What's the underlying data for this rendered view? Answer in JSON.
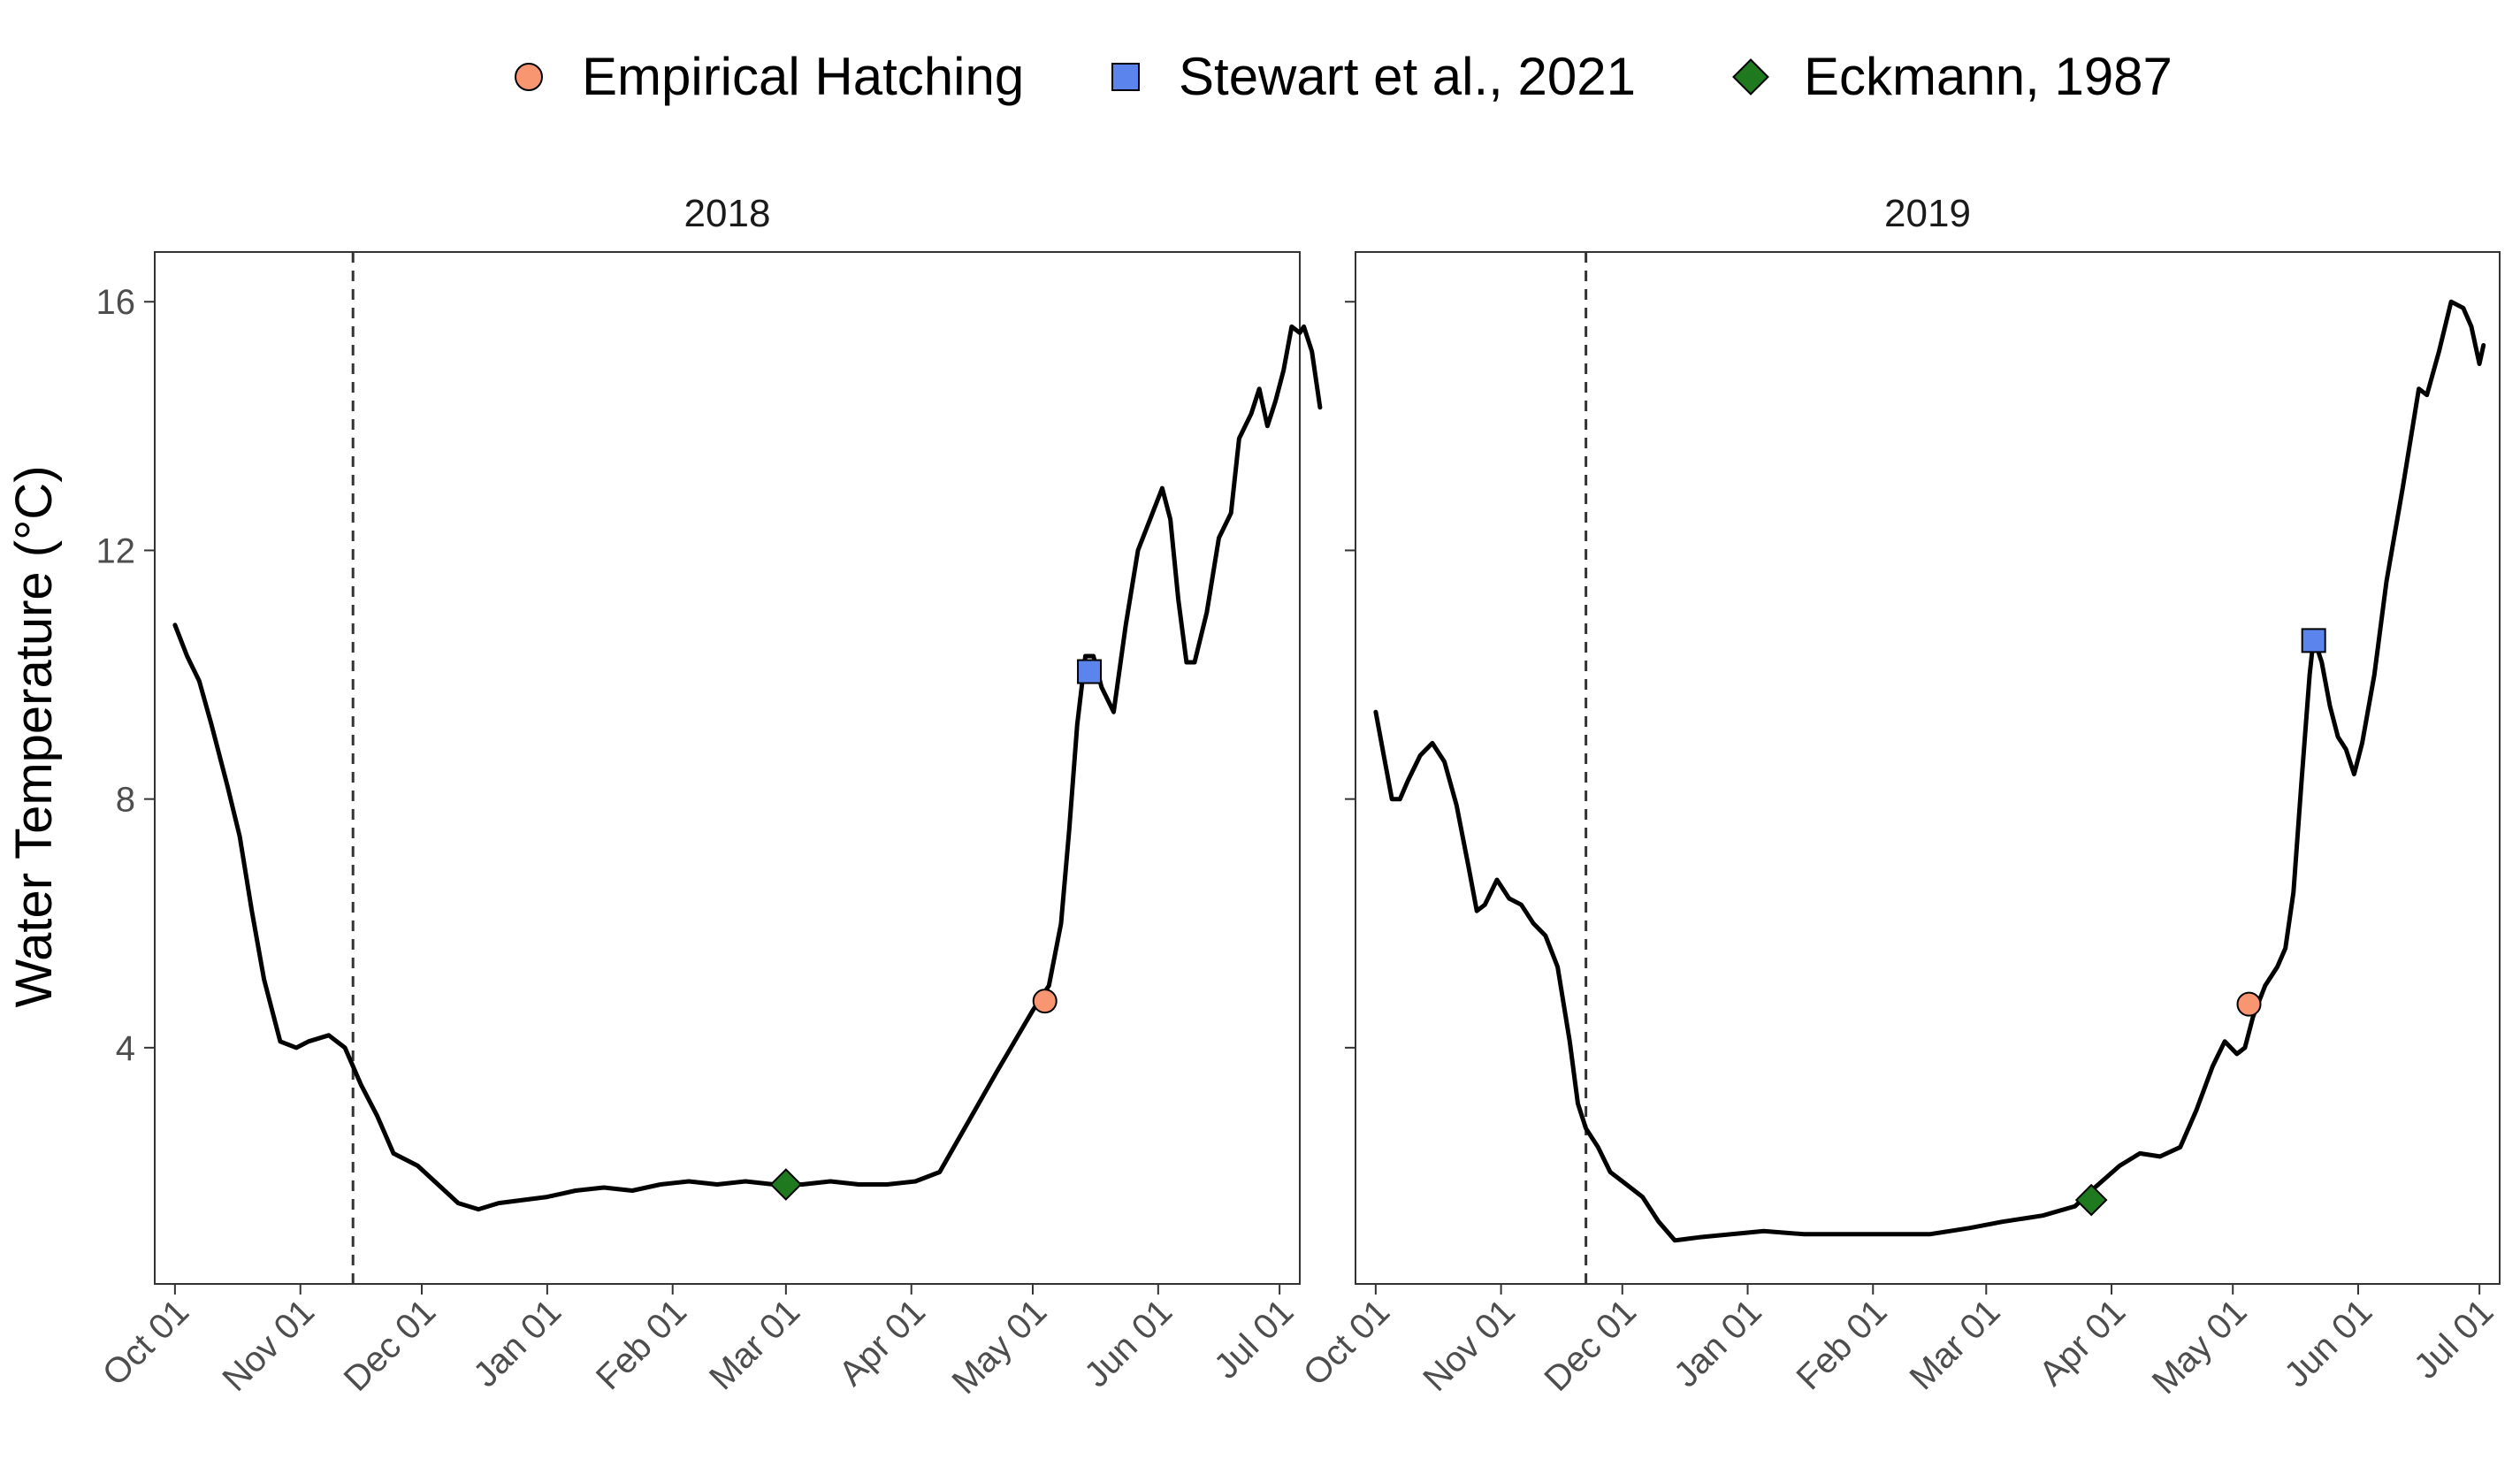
{
  "chart_data": {
    "type": "line",
    "ylabel": "Water Temperature (°C)",
    "xlabel": "",
    "ylim": [
      0.2,
      16.8
    ],
    "yticks": [
      4,
      8,
      12,
      16
    ],
    "x_tick_labels": [
      "Oct 01",
      "Nov 01",
      "Dec 01",
      "Jan 01",
      "Feb 01",
      "Mar 01",
      "Apr 01",
      "May 01",
      "Jun 01",
      "Jul 01"
    ],
    "grid": false,
    "legend": {
      "position": "top",
      "entries": [
        {
          "label": "Empirical Hatching",
          "shape": "circle",
          "color": "#F99672"
        },
        {
          "label": "Stewart et al., 2021",
          "shape": "square",
          "color": "#5B85EC"
        },
        {
          "label": "Eckmann, 1987",
          "shape": "diamond",
          "color": "#1F7A1F"
        }
      ]
    },
    "panels": [
      {
        "title": "2018",
        "vline_date": "2017-11-14",
        "series": [
          [
            "2017-10-01",
            10.8
          ],
          [
            "2017-10-04",
            10.3
          ],
          [
            "2017-10-07",
            9.9
          ],
          [
            "2017-10-10",
            9.2
          ],
          [
            "2017-10-14",
            8.2
          ],
          [
            "2017-10-17",
            7.4
          ],
          [
            "2017-10-20",
            6.2
          ],
          [
            "2017-10-23",
            5.1
          ],
          [
            "2017-10-27",
            4.1
          ],
          [
            "2017-10-31",
            4.0
          ],
          [
            "2017-11-03",
            4.1
          ],
          [
            "2017-11-08",
            4.2
          ],
          [
            "2017-11-12",
            4.0
          ],
          [
            "2017-11-16",
            3.4
          ],
          [
            "2017-11-20",
            2.9
          ],
          [
            "2017-11-24",
            2.3
          ],
          [
            "2017-11-30",
            2.1
          ],
          [
            "2017-12-05",
            1.8
          ],
          [
            "2017-12-10",
            1.5
          ],
          [
            "2017-12-15",
            1.4
          ],
          [
            "2017-12-20",
            1.5
          ],
          [
            "2017-12-26",
            1.55
          ],
          [
            "2018-01-01",
            1.6
          ],
          [
            "2018-01-08",
            1.7
          ],
          [
            "2018-01-15",
            1.75
          ],
          [
            "2018-01-22",
            1.7
          ],
          [
            "2018-01-29",
            1.8
          ],
          [
            "2018-02-05",
            1.85
          ],
          [
            "2018-02-12",
            1.8
          ],
          [
            "2018-02-19",
            1.85
          ],
          [
            "2018-02-26",
            1.8
          ],
          [
            "2018-03-05",
            1.8
          ],
          [
            "2018-03-12",
            1.85
          ],
          [
            "2018-03-19",
            1.8
          ],
          [
            "2018-03-26",
            1.8
          ],
          [
            "2018-04-02",
            1.85
          ],
          [
            "2018-04-08",
            2.0
          ],
          [
            "2018-04-15",
            2.8
          ],
          [
            "2018-04-22",
            3.6
          ],
          [
            "2018-05-01",
            4.6
          ],
          [
            "2018-05-05",
            5.0
          ],
          [
            "2018-05-08",
            6.0
          ],
          [
            "2018-05-10",
            7.5
          ],
          [
            "2018-05-12",
            9.2
          ],
          [
            "2018-05-14",
            10.3
          ],
          [
            "2018-05-16",
            10.3
          ],
          [
            "2018-05-18",
            9.8
          ],
          [
            "2018-05-21",
            9.4
          ],
          [
            "2018-05-24",
            10.8
          ],
          [
            "2018-05-27",
            12.0
          ],
          [
            "2018-05-30",
            12.5
          ],
          [
            "2018-06-02",
            13.0
          ],
          [
            "2018-06-04",
            12.5
          ],
          [
            "2018-06-06",
            11.2
          ],
          [
            "2018-06-08",
            10.2
          ],
          [
            "2018-06-10",
            10.2
          ],
          [
            "2018-06-13",
            11.0
          ],
          [
            "2018-06-16",
            12.2
          ],
          [
            "2018-06-19",
            12.6
          ],
          [
            "2018-06-21",
            13.8
          ],
          [
            "2018-06-24",
            14.2
          ],
          [
            "2018-06-26",
            14.6
          ],
          [
            "2018-06-28",
            14.0
          ],
          [
            "2018-06-30",
            14.4
          ],
          [
            "2018-07-02",
            14.9
          ],
          [
            "2018-07-04",
            15.6
          ],
          [
            "2018-07-06",
            15.5
          ],
          [
            "2018-07-07",
            15.6
          ],
          [
            "2018-07-09",
            15.2
          ],
          [
            "2018-07-11",
            14.3
          ]
        ],
        "markers": [
          {
            "label": "Empirical Hatching",
            "date": "2018-05-04",
            "value": 4.75
          },
          {
            "label": "Stewart et al., 2021",
            "date": "2018-05-15",
            "value": 10.05
          },
          {
            "label": "Eckmann, 1987",
            "date": "2018-03-01",
            "value": 1.8
          }
        ]
      },
      {
        "title": "2019",
        "vline_date": "2018-11-22",
        "series": [
          [
            "2018-10-01",
            9.4
          ],
          [
            "2018-10-03",
            8.7
          ],
          [
            "2018-10-05",
            8.0
          ],
          [
            "2018-10-07",
            8.0
          ],
          [
            "2018-10-09",
            8.3
          ],
          [
            "2018-10-12",
            8.7
          ],
          [
            "2018-10-15",
            8.9
          ],
          [
            "2018-10-18",
            8.6
          ],
          [
            "2018-10-21",
            7.9
          ],
          [
            "2018-10-24",
            6.9
          ],
          [
            "2018-10-26",
            6.2
          ],
          [
            "2018-10-28",
            6.3
          ],
          [
            "2018-10-31",
            6.7
          ],
          [
            "2018-11-03",
            6.4
          ],
          [
            "2018-11-06",
            6.3
          ],
          [
            "2018-11-09",
            6.0
          ],
          [
            "2018-11-12",
            5.8
          ],
          [
            "2018-11-15",
            5.3
          ],
          [
            "2018-11-18",
            4.1
          ],
          [
            "2018-11-20",
            3.1
          ],
          [
            "2018-11-22",
            2.7
          ],
          [
            "2018-11-25",
            2.4
          ],
          [
            "2018-11-28",
            2.0
          ],
          [
            "2018-12-02",
            1.8
          ],
          [
            "2018-12-06",
            1.6
          ],
          [
            "2018-12-10",
            1.2
          ],
          [
            "2018-12-14",
            0.9
          ],
          [
            "2018-12-20",
            0.95
          ],
          [
            "2018-12-28",
            1.0
          ],
          [
            "2019-01-05",
            1.05
          ],
          [
            "2019-01-15",
            1.0
          ],
          [
            "2019-01-25",
            1.0
          ],
          [
            "2019-02-05",
            1.0
          ],
          [
            "2019-02-15",
            1.0
          ],
          [
            "2019-02-25",
            1.1
          ],
          [
            "2019-03-05",
            1.2
          ],
          [
            "2019-03-15",
            1.3
          ],
          [
            "2019-03-23",
            1.45
          ],
          [
            "2019-03-27",
            1.7
          ],
          [
            "2019-04-03",
            2.1
          ],
          [
            "2019-04-08",
            2.3
          ],
          [
            "2019-04-13",
            2.25
          ],
          [
            "2019-04-18",
            2.4
          ],
          [
            "2019-04-22",
            3.0
          ],
          [
            "2019-04-26",
            3.7
          ],
          [
            "2019-04-29",
            4.1
          ],
          [
            "2019-05-02",
            3.9
          ],
          [
            "2019-05-04",
            4.0
          ],
          [
            "2019-05-06",
            4.5
          ],
          [
            "2019-05-09",
            5.0
          ],
          [
            "2019-05-12",
            5.3
          ],
          [
            "2019-05-14",
            5.6
          ],
          [
            "2019-05-16",
            6.5
          ],
          [
            "2019-05-18",
            8.3
          ],
          [
            "2019-05-20",
            10.0
          ],
          [
            "2019-05-21",
            10.6
          ],
          [
            "2019-05-23",
            10.2
          ],
          [
            "2019-05-25",
            9.5
          ],
          [
            "2019-05-27",
            9.0
          ],
          [
            "2019-05-29",
            8.8
          ],
          [
            "2019-05-31",
            8.4
          ],
          [
            "2019-06-02",
            8.9
          ],
          [
            "2019-06-05",
            10.0
          ],
          [
            "2019-06-08",
            11.5
          ],
          [
            "2019-06-12",
            13.0
          ],
          [
            "2019-06-16",
            14.6
          ],
          [
            "2019-06-18",
            14.5
          ],
          [
            "2019-06-21",
            15.2
          ],
          [
            "2019-06-24",
            16.0
          ],
          [
            "2019-06-27",
            15.9
          ],
          [
            "2019-06-29",
            15.6
          ],
          [
            "2019-07-01",
            15.0
          ],
          [
            "2019-07-02",
            15.3
          ]
        ],
        "markers": [
          {
            "label": "Empirical Hatching",
            "date": "2019-05-05",
            "value": 4.7
          },
          {
            "label": "Stewart et al., 2021",
            "date": "2019-05-21",
            "value": 10.55
          },
          {
            "label": "Eckmann, 1987",
            "date": "2019-03-27",
            "value": 1.55
          }
        ]
      }
    ]
  }
}
